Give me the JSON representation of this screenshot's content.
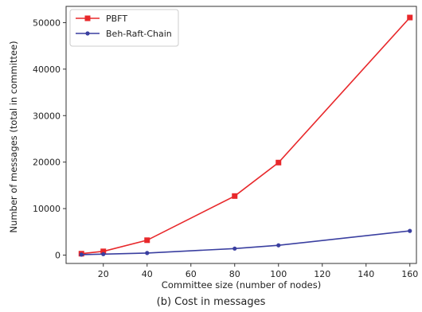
{
  "caption": "(b) Cost in messages",
  "chart_data": {
    "type": "line",
    "xlabel": "Committee size (number of nodes)",
    "ylabel": "Number of messages (total in committee)",
    "xlim": [
      3,
      163
    ],
    "ylim": [
      -1800,
      53500
    ],
    "xticks": [
      20,
      40,
      60,
      80,
      100,
      120,
      140,
      160
    ],
    "yticks": [
      0,
      10000,
      20000,
      30000,
      40000,
      50000
    ],
    "legend_position": "top-left",
    "series": [
      {
        "name": "PBFT",
        "color": "#e8282b",
        "marker": "square",
        "x": [
          10,
          20,
          40,
          80,
          100,
          160
        ],
        "y": [
          300,
          800,
          3200,
          12700,
          19900,
          51100
        ]
      },
      {
        "name": "Beh-Raft-Chain",
        "color": "#3a3fa0",
        "marker": "dot",
        "x": [
          10,
          20,
          40,
          80,
          100,
          160
        ],
        "y": [
          100,
          200,
          450,
          1400,
          2100,
          5200
        ]
      }
    ]
  }
}
